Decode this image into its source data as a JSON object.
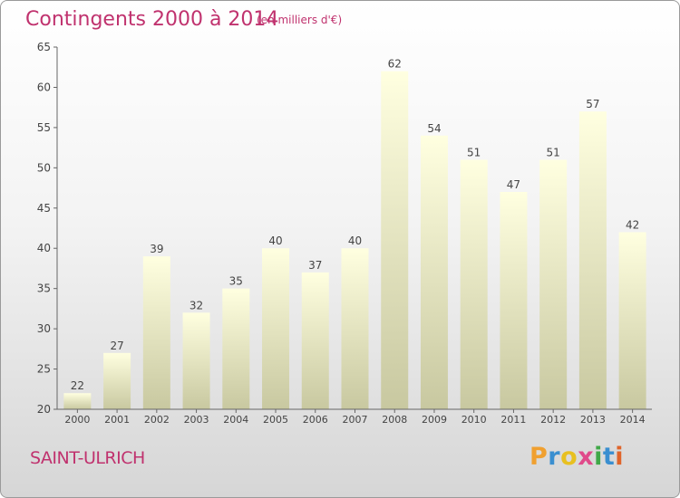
{
  "title": "Contingents 2000 à 2014",
  "subtitle": "(en milliers d'€)",
  "commune": "SAINT-ULRICH",
  "brand": {
    "letters": [
      "P",
      "r",
      "o",
      "x",
      "i",
      "t",
      "i"
    ],
    "colors": [
      "#f0a030",
      "#3a8fd0",
      "#e8c020",
      "#e04a8a",
      "#40a848",
      "#3a8fd0",
      "#e0642a"
    ]
  },
  "colors": {
    "title": "#c0326e",
    "bar_top": "#ffffe0",
    "bar_bottom": "#c8c8a0",
    "axis": "#666666"
  },
  "chart_data": {
    "type": "bar",
    "categories": [
      "2000",
      "2001",
      "2002",
      "2003",
      "2004",
      "2005",
      "2006",
      "2007",
      "2008",
      "2009",
      "2010",
      "2011",
      "2012",
      "2013",
      "2014"
    ],
    "values": [
      22,
      27,
      39,
      32,
      35,
      40,
      37,
      40,
      62,
      54,
      51,
      47,
      51,
      57,
      42
    ],
    "ylim": [
      20,
      65
    ],
    "yticks": [
      20,
      25,
      30,
      35,
      40,
      45,
      50,
      55,
      60,
      65
    ],
    "grid": false,
    "xlabel": "",
    "ylabel": ""
  }
}
